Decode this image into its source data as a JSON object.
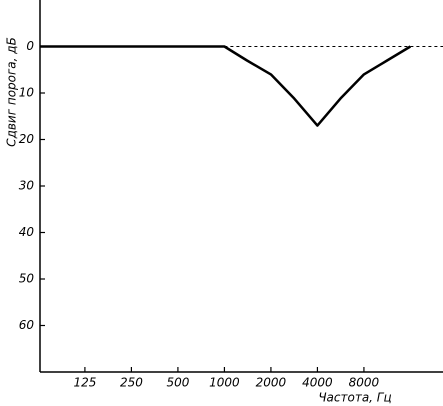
{
  "chart_data": {
    "type": "line",
    "xlabel": "Частота, Гц",
    "ylabel": "Сдвиг порога, дБ",
    "xlim": [
      64,
      26000
    ],
    "xticks": [
      125,
      250,
      500,
      1000,
      2000,
      4000,
      8000
    ],
    "xscale": "log",
    "ylim": [
      -10,
      70
    ],
    "yticks": [
      0,
      10,
      20,
      30,
      40,
      50,
      60
    ],
    "y_inverted": true,
    "series": [
      {
        "color": "#000000",
        "dash": false,
        "width": 2.5,
        "x": [
          64,
          1000,
          1400,
          2000,
          2800,
          4000,
          5700,
          8000,
          11300,
          16000
        ],
        "values": [
          0,
          0,
          3,
          6,
          11,
          17,
          11,
          6,
          3,
          0
        ]
      },
      {
        "color": "#000000",
        "dash": true,
        "width": 1,
        "x": [
          1000,
          26000
        ],
        "values": [
          0,
          0
        ]
      }
    ]
  }
}
